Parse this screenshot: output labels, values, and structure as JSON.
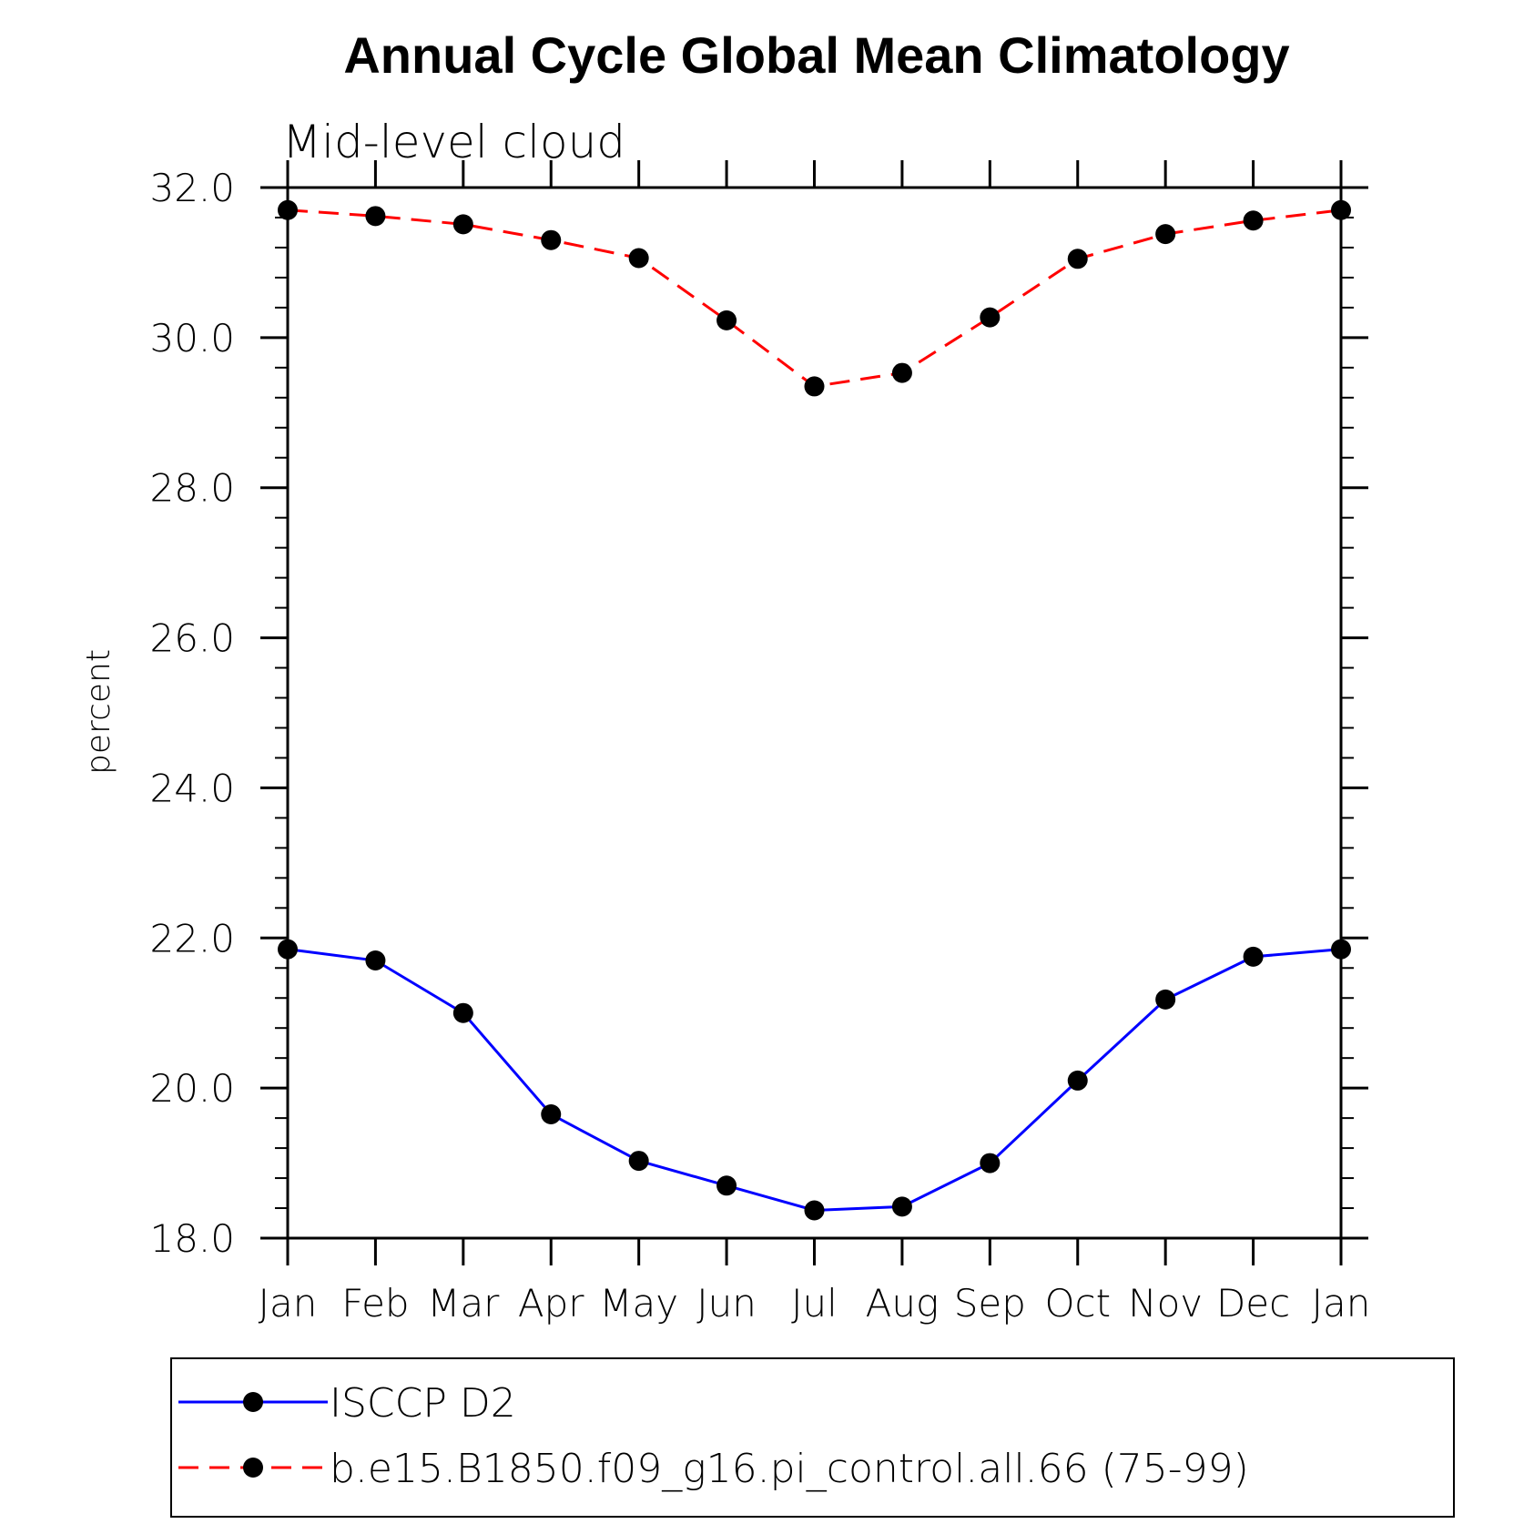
{
  "chart_data": {
    "type": "line",
    "title": "Annual Cycle Global Mean Climatology",
    "subtitle": "Mid-level cloud",
    "xlabel": "",
    "ylabel": "percent",
    "categories": [
      "Jan",
      "Feb",
      "Mar",
      "Apr",
      "May",
      "Jun",
      "Jul",
      "Aug",
      "Sep",
      "Oct",
      "Nov",
      "Dec",
      "Jan"
    ],
    "ylim": [
      18.0,
      32.0
    ],
    "yticks": [
      "18.0",
      "20.0",
      "22.0",
      "24.0",
      "26.0",
      "28.0",
      "30.0",
      "32.0"
    ],
    "grid": false,
    "legend_position": "bottom",
    "series": [
      {
        "name": "ISCCP D2",
        "color": "#0000ff",
        "dash": "solid",
        "marker": "filled-circle",
        "values": [
          21.85,
          21.7,
          21.0,
          19.65,
          19.03,
          18.7,
          18.37,
          18.42,
          19.0,
          20.1,
          21.18,
          21.75,
          21.85
        ]
      },
      {
        "name": "b.e15.B1850.f09_g16.pi_control.all.66 (75-99)",
        "color": "#ff0000",
        "dash": "dashed",
        "marker": "filled-circle",
        "values": [
          31.7,
          31.62,
          31.51,
          31.3,
          31.06,
          30.23,
          29.35,
          29.53,
          30.27,
          31.05,
          31.38,
          31.56,
          31.7
        ]
      }
    ]
  }
}
